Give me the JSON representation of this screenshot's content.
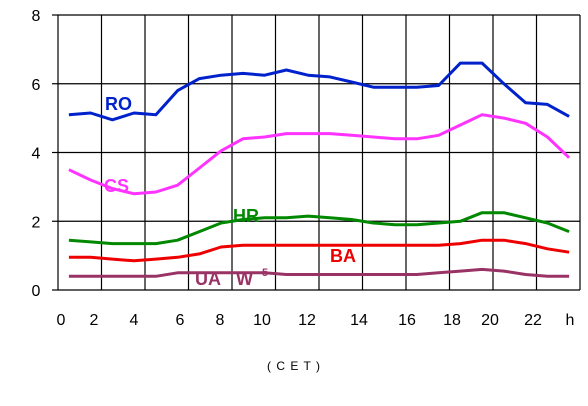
{
  "chart_data": {
    "type": "line",
    "y_tick_labels": [
      "0",
      "2",
      "4",
      "6",
      "8"
    ],
    "y_ticks": [
      0,
      2,
      4,
      6,
      8
    ],
    "x_tick_labels": [
      "0",
      "2",
      "4",
      "6",
      "8",
      "10",
      "12",
      "14",
      "16",
      "18",
      "20",
      "22",
      "h"
    ],
    "xlabel": "( C E T )",
    "ylim": [
      0,
      8
    ],
    "xlim": [
      0,
      24
    ],
    "grid": true,
    "series": [
      {
        "name": "RO",
        "color": "#0022cc",
        "label_color": "#0022cc",
        "x": [
          0.5,
          1.5,
          2.5,
          3.5,
          4.5,
          5.5,
          6.5,
          7.5,
          8.5,
          9.5,
          10.5,
          11.5,
          12.5,
          13.5,
          14.5,
          15.5,
          16.5,
          17.5,
          18.5,
          19.5,
          20.5,
          21.5,
          22.5,
          23.5
        ],
        "values": [
          5.1,
          5.15,
          4.95,
          5.15,
          5.1,
          5.8,
          6.15,
          6.25,
          6.3,
          6.25,
          6.4,
          6.25,
          6.2,
          6.05,
          5.9,
          5.9,
          5.9,
          5.95,
          6.6,
          6.6,
          6.0,
          5.45,
          5.4,
          5.05
        ]
      },
      {
        "name": "CS",
        "color": "#ff33ff",
        "label_color": "#ff33ff",
        "x": [
          0.5,
          1.5,
          2.5,
          3.5,
          4.5,
          5.5,
          6.5,
          7.5,
          8.5,
          9.5,
          10.5,
          11.5,
          12.5,
          13.5,
          14.5,
          15.5,
          16.5,
          17.5,
          18.5,
          19.5,
          20.5,
          21.5,
          22.5,
          23.5
        ],
        "values": [
          3.5,
          3.2,
          2.95,
          2.8,
          2.85,
          3.05,
          3.55,
          4.05,
          4.4,
          4.45,
          4.55,
          4.55,
          4.55,
          4.5,
          4.45,
          4.4,
          4.4,
          4.5,
          4.8,
          5.1,
          5.0,
          4.85,
          4.45,
          3.85
        ]
      },
      {
        "name": "HR",
        "color": "#008800",
        "label_color": "#008800",
        "x": [
          0.5,
          1.5,
          2.5,
          3.5,
          4.5,
          5.5,
          6.5,
          7.5,
          8.5,
          9.5,
          10.5,
          11.5,
          12.5,
          13.5,
          14.5,
          15.5,
          16.5,
          17.5,
          18.5,
          19.5,
          20.5,
          21.5,
          22.5,
          23.5
        ],
        "values": [
          1.45,
          1.4,
          1.35,
          1.35,
          1.35,
          1.45,
          1.7,
          1.95,
          2.05,
          2.1,
          2.1,
          2.15,
          2.1,
          2.05,
          1.95,
          1.9,
          1.9,
          1.95,
          2.0,
          2.25,
          2.25,
          2.1,
          1.95,
          1.7
        ]
      },
      {
        "name": "BA",
        "color": "#ee0000",
        "label_color": "#ee0000",
        "x": [
          0.5,
          1.5,
          2.5,
          3.5,
          4.5,
          5.5,
          6.5,
          7.5,
          8.5,
          9.5,
          10.5,
          11.5,
          12.5,
          13.5,
          14.5,
          15.5,
          16.5,
          17.5,
          18.5,
          19.5,
          20.5,
          21.5,
          22.5,
          23.5
        ],
        "values": [
          0.95,
          0.95,
          0.9,
          0.85,
          0.9,
          0.95,
          1.05,
          1.25,
          1.3,
          1.3,
          1.3,
          1.3,
          1.3,
          1.3,
          1.3,
          1.3,
          1.3,
          1.3,
          1.35,
          1.45,
          1.45,
          1.35,
          1.2,
          1.1
        ]
      },
      {
        "name": "UA",
        "color": "#993366",
        "label_color": "#993366",
        "x": [
          0.5,
          1.5,
          2.5,
          3.5,
          4.5,
          5.5,
          6.5,
          7.5,
          8.5,
          9.5,
          10.5,
          11.5,
          12.5,
          13.5,
          14.5,
          15.5,
          16.5,
          17.5,
          18.5,
          19.5,
          20.5,
          21.5,
          22.5,
          23.5
        ],
        "values": [
          0.4,
          0.4,
          0.4,
          0.4,
          0.4,
          0.5,
          0.5,
          0.5,
          0.5,
          0.5,
          0.45,
          0.45,
          0.45,
          0.45,
          0.45,
          0.45,
          0.45,
          0.5,
          0.55,
          0.6,
          0.55,
          0.45,
          0.4,
          0.4
        ]
      }
    ],
    "annotations": [
      {
        "text": "W",
        "superscript": "5",
        "color": "#993366"
      }
    ]
  }
}
